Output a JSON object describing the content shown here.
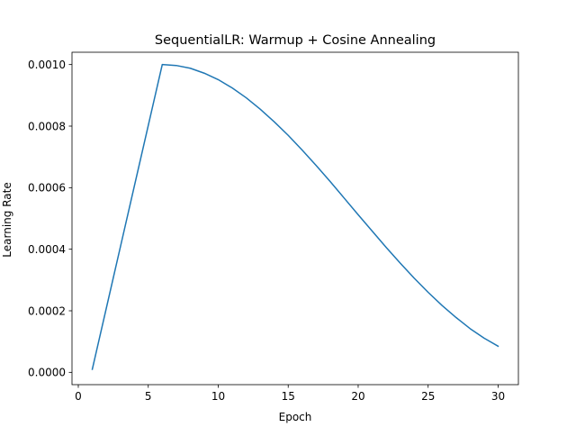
{
  "chart_data": {
    "type": "line",
    "title": "SequentialLR: Warmup + Cosine Annealing",
    "xlabel": "Epoch",
    "ylabel": "Learning Rate",
    "xlim": [
      -0.45,
      31.45
    ],
    "ylim": [
      -4e-05,
      0.00104
    ],
    "x_ticks": [
      0,
      5,
      10,
      15,
      20,
      25,
      30
    ],
    "x_tick_labels": [
      "0",
      "5",
      "10",
      "15",
      "20",
      "25",
      "30"
    ],
    "y_ticks": [
      0.0,
      0.0002,
      0.0004,
      0.0006,
      0.0008,
      0.001
    ],
    "y_tick_labels": [
      "0.0000",
      "0.0002",
      "0.0004",
      "0.0006",
      "0.0008",
      "0.0010"
    ],
    "grid": false,
    "legend": "none",
    "series": [
      {
        "color": "#1f77b4",
        "x": [
          1,
          2,
          3,
          4,
          5,
          6,
          7,
          8,
          9,
          10,
          11,
          12,
          13,
          14,
          15,
          16,
          17,
          18,
          19,
          20,
          21,
          22,
          23,
          24,
          25,
          26,
          27,
          28,
          29,
          30
        ],
        "y": [
          1e-05,
          0.000208,
          0.000406,
          0.000604,
          0.000802,
          0.001,
          0.000997,
          0.000988,
          0.000972,
          0.000951,
          0.000924,
          0.000892,
          0.000855,
          0.000814,
          0.00077,
          0.000722,
          0.000672,
          0.00062,
          0.000566,
          0.000512,
          0.000459,
          0.000406,
          0.000355,
          0.000306,
          0.00026,
          0.000217,
          0.000178,
          0.000142,
          0.000111,
          8.5e-05
        ]
      }
    ]
  }
}
